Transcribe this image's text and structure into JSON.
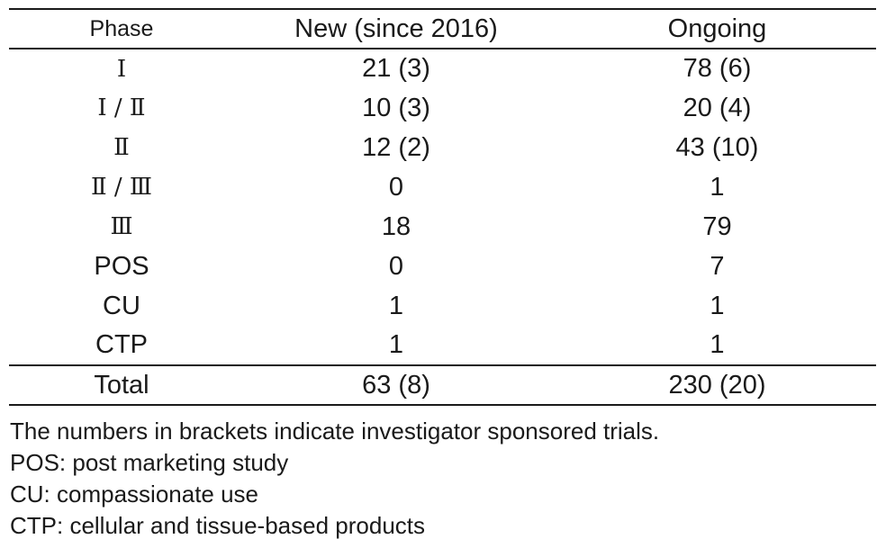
{
  "table": {
    "headers": [
      "Phase",
      "New (since 2016)",
      "Ongoing"
    ],
    "rows": [
      {
        "phase": "Ⅰ",
        "new": "21 (3)",
        "ongoing": "78 (6)"
      },
      {
        "phase": "Ⅰ / Ⅱ",
        "new": "10 (3)",
        "ongoing": "20 (4)"
      },
      {
        "phase": "Ⅱ",
        "new": "12 (2)",
        "ongoing": "43 (10)"
      },
      {
        "phase": "Ⅱ / Ⅲ",
        "new": "0",
        "ongoing": "1"
      },
      {
        "phase": "Ⅲ",
        "new": "18",
        "ongoing": "79"
      },
      {
        "phase": "POS",
        "new": "0",
        "ongoing": "7"
      },
      {
        "phase": "CU",
        "new": "1",
        "ongoing": "1"
      },
      {
        "phase": "CTP",
        "new": "1",
        "ongoing": "1"
      }
    ],
    "total": {
      "label": "Total",
      "new": "63 (8)",
      "ongoing": "230 (20)"
    }
  },
  "notes": [
    "The numbers in brackets indicate investigator sponsored trials.",
    "POS: post marketing study",
    "CU: compassionate use",
    "CTP: cellular and tissue-based products"
  ]
}
